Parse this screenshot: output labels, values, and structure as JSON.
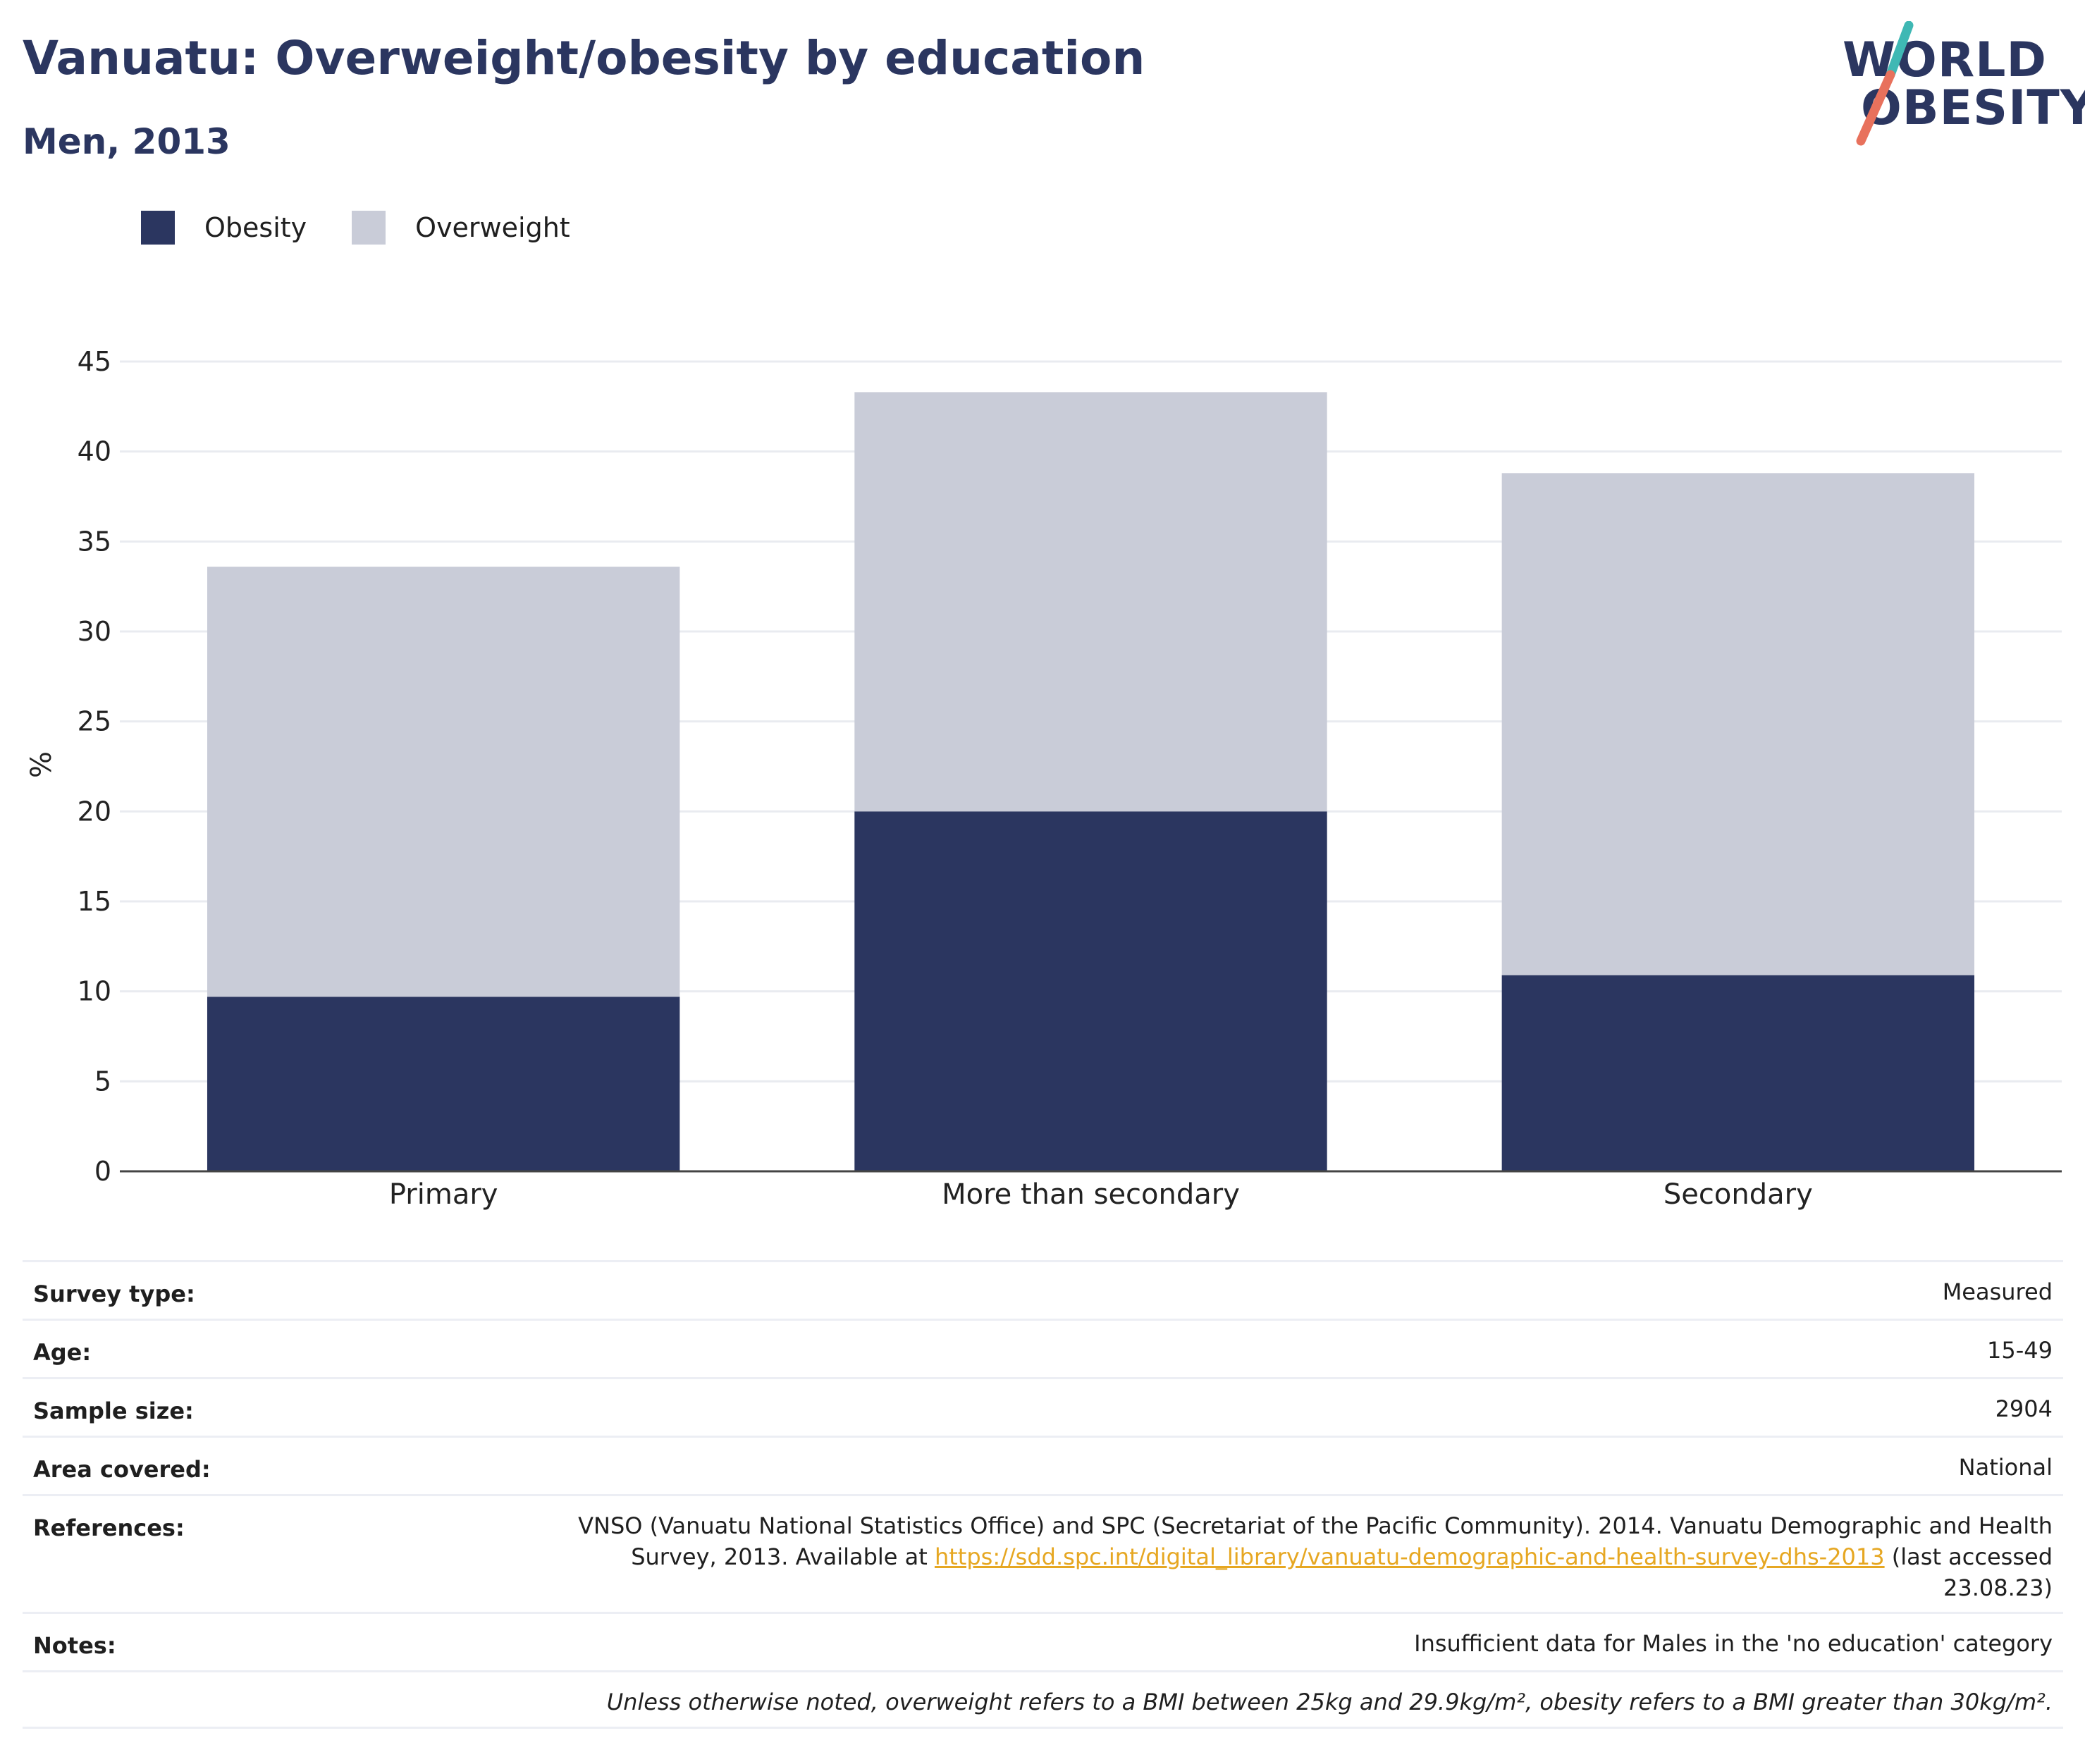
{
  "title": "Vanuatu: Overweight/obesity by education",
  "subtitle": "Men, 2013",
  "logo": {
    "line1": "WORLD",
    "line2": "OBESITY",
    "slash_colors": [
      "#3fb8b4",
      "#e8715c"
    ]
  },
  "colors": {
    "obesity": "#2b3660",
    "overweight": "#c9ccd8",
    "grid": "#e9ebf0",
    "axis": "#444444"
  },
  "legend": [
    {
      "label": "Obesity",
      "color": "#2b3660"
    },
    {
      "label": "Overweight",
      "color": "#c9ccd8"
    }
  ],
  "chart_data": {
    "type": "bar",
    "stacked": true,
    "categories": [
      "Primary",
      "More than secondary",
      "Secondary"
    ],
    "series": [
      {
        "name": "Obesity",
        "values": [
          9.7,
          20.0,
          10.9
        ]
      },
      {
        "name": "Overweight",
        "values": [
          23.9,
          23.3,
          27.9
        ]
      }
    ],
    "ylabel": "%",
    "xlabel": "",
    "ylim": [
      0,
      45
    ],
    "yticks": [
      0,
      5,
      10,
      15,
      20,
      25,
      30,
      35,
      40,
      45
    ],
    "grid": true,
    "legend_position": "top-left"
  },
  "meta": {
    "survey_type": {
      "label": "Survey type:",
      "value": "Measured"
    },
    "age": {
      "label": "Age:",
      "value": "15-49"
    },
    "sample_size": {
      "label": "Sample size:",
      "value": "2904"
    },
    "area": {
      "label": "Area covered:",
      "value": "National"
    },
    "references": {
      "label": "References:",
      "text_before": "VNSO (Vanuatu National Statistics Office) and SPC (Secretariat of the Pacific Community). 2014. Vanuatu Demographic and Health Survey, 2013. Available at ",
      "link": "https://sdd.spc.int/digital_library/vanuatu-demographic-and-health-survey-dhs-2013",
      "text_after": " (last accessed 23.08.23)"
    },
    "notes": {
      "label": "Notes:",
      "value": "Insufficient data for Males in the 'no education' category"
    },
    "footer_note": "Unless otherwise noted, overweight refers to a BMI between 25kg and 29.9kg/m², obesity refers to a BMI greater than 30kg/m²."
  }
}
